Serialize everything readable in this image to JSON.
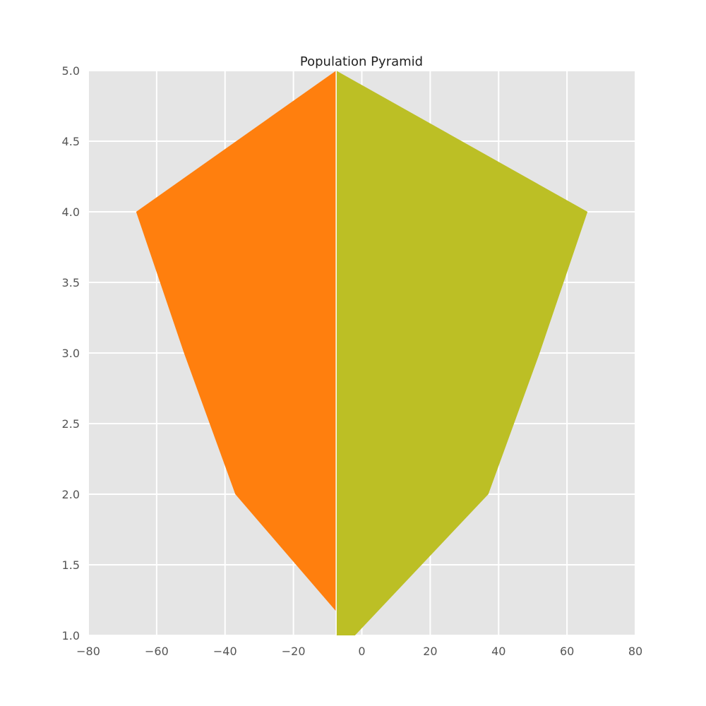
{
  "chart_data": {
    "type": "area",
    "title": "Population Pyramid",
    "xlabel": "",
    "ylabel": "",
    "xlim": [
      -80,
      80
    ],
    "ylim": [
      1.0,
      5.0
    ],
    "x_ticks": [
      -80,
      -60,
      -40,
      -20,
      0,
      20,
      40,
      60,
      80
    ],
    "x_tick_labels": [
      "−80",
      "−60",
      "−40",
      "−20",
      "0",
      "20",
      "40",
      "60",
      "80"
    ],
    "y_ticks": [
      1.0,
      1.5,
      2.0,
      2.5,
      3.0,
      3.5,
      4.0,
      4.5,
      5.0
    ],
    "y_tick_labels": [
      "1.0",
      "1.5",
      "2.0",
      "2.5",
      "3.0",
      "3.5",
      "4.0",
      "4.5",
      "5.0"
    ],
    "grid": true,
    "legend": "none",
    "baseline_x": -7.5,
    "series": [
      {
        "color": "#ff7f0e",
        "side": "left",
        "y": [
          1.17,
          2.0,
          3.0,
          4.0,
          5.0
        ],
        "x": [
          -7.5,
          -37,
          -52,
          -66,
          -7.5
        ]
      },
      {
        "color": "#bcbf25",
        "side": "right",
        "y": [
          1.0,
          2.0,
          3.0,
          4.0,
          5.0
        ],
        "x": [
          -2,
          37,
          52,
          66,
          -7.5
        ]
      }
    ],
    "background_color": "#e5e5e5",
    "grid_color": "#ffffff"
  }
}
